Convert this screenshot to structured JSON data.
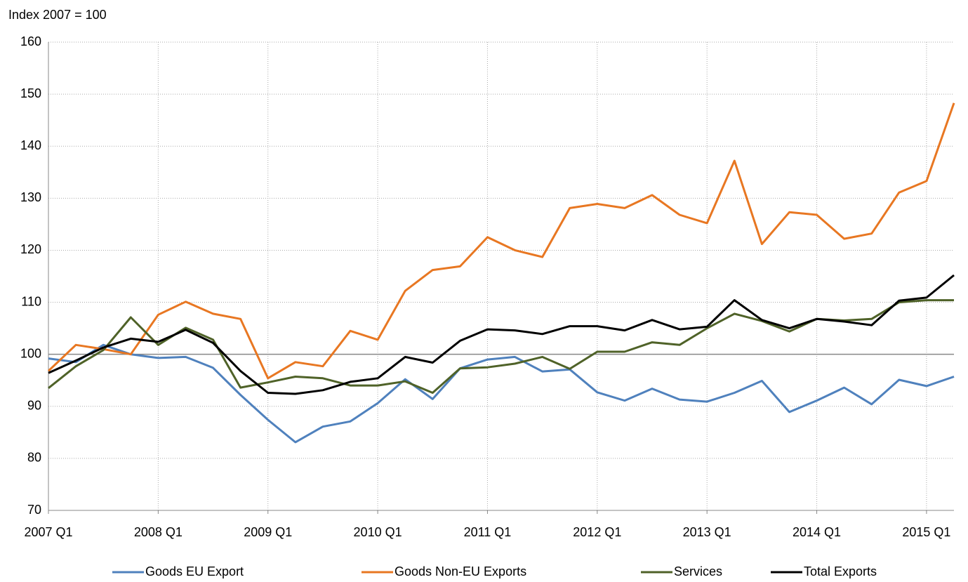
{
  "chart_data": {
    "type": "line",
    "y_axis_label": "Index 2007  = 100",
    "categories": [
      "2007 Q1",
      null,
      null,
      null,
      "2008 Q1",
      null,
      null,
      null,
      "2009 Q1",
      null,
      null,
      null,
      "2010 Q1",
      null,
      null,
      null,
      "2011 Q1",
      null,
      null,
      null,
      "2012 Q1",
      null,
      null,
      null,
      "2013 Q1",
      null,
      null,
      null,
      "2014 Q1",
      null,
      null,
      null,
      "2015 Q1",
      null
    ],
    "series": [
      {
        "name": "Goods EU Export",
        "color": "#4f81bd",
        "values": [
          99.2,
          98.5,
          101.8,
          100,
          99.3,
          99.5,
          97.4,
          92.2,
          87.4,
          83.1,
          86.1,
          87.1,
          90.6,
          95.2,
          91.4,
          97.3,
          99.0,
          99.5,
          96.7,
          97.1,
          92.7,
          91.1,
          93.4,
          91.3,
          90.9,
          92.6,
          94.9,
          88.9,
          91.1,
          93.6,
          90.4,
          95.1,
          93.9,
          95.7
        ]
      },
      {
        "name": "Goods Non-EU Exports",
        "color": "#e87722",
        "values": [
          96.8,
          101.8,
          101.0,
          100.0,
          107.6,
          110.1,
          107.8,
          106.8,
          95.4,
          98.5,
          97.7,
          104.5,
          102.8,
          112.2,
          116.2,
          116.9,
          122.5,
          120.0,
          118.7,
          128.1,
          128.9,
          128.1,
          130.6,
          126.8,
          125.2,
          137.2,
          121.2,
          127.3,
          126.8,
          122.2,
          123.2,
          131.1,
          133.3,
          148.3
        ]
      },
      {
        "name": "Services",
        "color": "#4f6228",
        "values": [
          93.5,
          97.7,
          100.8,
          107.1,
          101.8,
          105.1,
          102.8,
          93.6,
          94.6,
          95.7,
          95.4,
          94.0,
          94.0,
          94.8,
          92.6,
          97.3,
          97.5,
          98.2,
          99.5,
          97.2,
          100.5,
          100.5,
          102.3,
          101.8,
          105.0,
          107.8,
          106.4,
          104.4,
          106.8,
          106.5,
          106.8,
          110.0,
          110.4,
          110.4
        ]
      },
      {
        "name": "Total Exports",
        "color": "#000000",
        "values": [
          96.4,
          98.8,
          101.3,
          103.0,
          102.4,
          104.7,
          102.2,
          96.8,
          92.6,
          92.4,
          93.1,
          94.7,
          95.4,
          99.5,
          98.4,
          102.6,
          104.8,
          104.6,
          103.9,
          105.4,
          105.4,
          104.6,
          106.6,
          104.8,
          105.3,
          110.4,
          106.6,
          105.0,
          106.8,
          106.3,
          105.6,
          110.3,
          110.9,
          115.2
        ]
      }
    ],
    "ylim": [
      70,
      160
    ],
    "yticks": [
      70,
      80,
      90,
      100,
      110,
      120,
      130,
      140,
      150,
      160
    ],
    "reference_line": 100,
    "grid": true,
    "legend": "bottom"
  }
}
